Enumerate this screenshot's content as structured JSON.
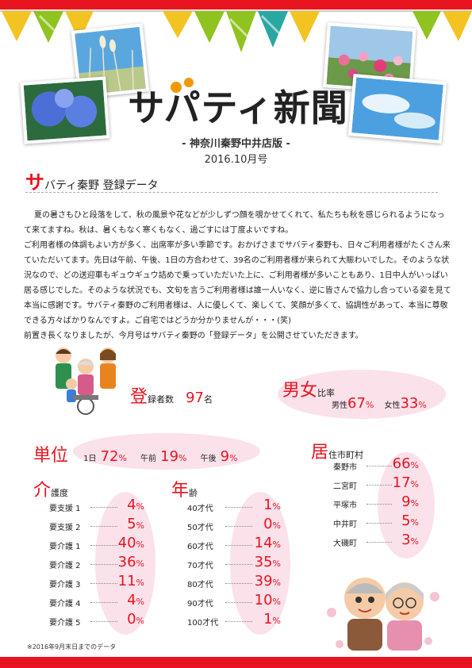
{
  "header": {
    "title": "サパティ新聞",
    "subtitle": "- 神奈川秦野中井店版 -",
    "issue": "2016.10月号"
  },
  "section": {
    "head_big": "サ",
    "head_rest": "バティ秦野 登録データ"
  },
  "body": {
    "p1": "夏の暑さもひと段落をして、秋の風景や花などが少しずつ顔を覗かせてくれて、私たちも秋を感じられるようになって来てますね。秋は、暑くもなく寒くもなく、過ごすには丁度よいですね。",
    "p2": "ご利用者様の体調もよい方が多く、出席率が多い季節です。おかげさまでサバティ秦野も、日々ご利用者様がたくさん来ていただいてます。先日は午前、午後、1日の方合わせて、39名のご利用者様が来られて大賑わいでした。そのような状況なので、どの送迎車もギュウギュウ詰めで乗っていただいた上に、ご利用者様が多いこともあり、1日中人がいっぱい居る感じでした。そのような状況でも、文句を言うご利用者様は誰一人いなく、逆に皆さんで協力し合っている姿を見て本当に感謝です。サバティ秦野のご利用者様は、人に優しくて、楽しくて、笑顔が多くて、協調性があって、本当に尊敬できる方々ばかりなんですよ。ご自宅ではどうか分かりませんが・・・(笑)",
    "p3": "前置き長くなりましたが、今月号はサバティ秦野の「登録データ」を公開させていただきます。"
  },
  "registered": {
    "big": "登",
    "rest": "録者数",
    "value": "97",
    "unit": "名"
  },
  "gender": {
    "big": "男女",
    "rest": "比率",
    "male_label": "男性",
    "male_value": "67",
    "female_label": "女性",
    "female_value": "33",
    "unit": "%"
  },
  "unit_section": {
    "big": "単位",
    "items": [
      {
        "label": "1日",
        "value": "72",
        "unit": "%"
      },
      {
        "label": "午前",
        "value": "19",
        "unit": "%"
      },
      {
        "label": "午後",
        "value": "9",
        "unit": "%"
      }
    ]
  },
  "care": {
    "big": "介",
    "rest": "護度",
    "rows": [
      {
        "label": "要支援 1",
        "value": "4",
        "unit": "%"
      },
      {
        "label": "要支援 2",
        "value": "5",
        "unit": "%"
      },
      {
        "label": "要介護 1",
        "value": "40",
        "unit": "%"
      },
      {
        "label": "要介護 2",
        "value": "36",
        "unit": "%"
      },
      {
        "label": "要介護 3",
        "value": "11",
        "unit": "%"
      },
      {
        "label": "要介護 4",
        "value": "4",
        "unit": "%"
      },
      {
        "label": "要介護 5",
        "value": "0",
        "unit": "%"
      }
    ]
  },
  "age": {
    "big": "年",
    "rest": "齢",
    "rows": [
      {
        "label": "40才代",
        "value": "1",
        "unit": "%"
      },
      {
        "label": "50才代",
        "value": "0",
        "unit": "%"
      },
      {
        "label": "60才代",
        "value": "14",
        "unit": "%"
      },
      {
        "label": "70才代",
        "value": "35",
        "unit": "%"
      },
      {
        "label": "80才代",
        "value": "39",
        "unit": "%"
      },
      {
        "label": "90才代",
        "value": "10",
        "unit": "%"
      },
      {
        "label": "100才代",
        "value": "1",
        "unit": "%"
      }
    ]
  },
  "residence": {
    "big": "居",
    "rest": "住市町村",
    "rows": [
      {
        "label": "秦野市",
        "value": "66",
        "unit": "%"
      },
      {
        "label": "二宮町",
        "value": "17",
        "unit": "%"
      },
      {
        "label": "平塚市",
        "value": "9",
        "unit": "%"
      },
      {
        "label": "中井町",
        "value": "5",
        "unit": "%"
      },
      {
        "label": "大磯町",
        "value": "3",
        "unit": "%"
      }
    ]
  },
  "note": "※2016年9月末日までのデータ",
  "colors": {
    "accent": "#e8141f",
    "blob": "#fbe1ea",
    "bunting_yellow": "#f3c321",
    "bunting_green": "#8fc31f",
    "bunting_teal": "#2aa7a0"
  }
}
